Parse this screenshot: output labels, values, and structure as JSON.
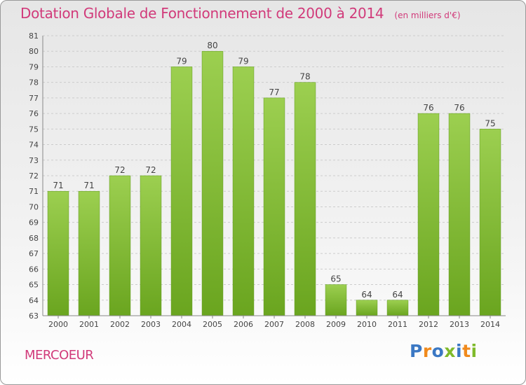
{
  "header": {
    "title": "Dotation Globale de Fonctionnement de 2000 à 2014",
    "subtitle": "(en milliers d'€)"
  },
  "footer": {
    "place": "MERCOEUR",
    "logo": "Proxiti"
  },
  "colors": {
    "title": "#d13a7a",
    "bar_light": "#9ccf50",
    "bar_dark": "#6aa51f",
    "grid": "#cccccc",
    "logo_letters": [
      "#3b78c4",
      "#f08a1d",
      "#3b78c4",
      "#7fba2b",
      "#3b78c4",
      "#f08a1d",
      "#7fba2b"
    ]
  },
  "chart_data": {
    "type": "bar",
    "title": "Dotation Globale de Fonctionnement de 2000 à 2014",
    "subtitle": "(en milliers d'€)",
    "categories": [
      "2000",
      "2001",
      "2002",
      "2003",
      "2004",
      "2005",
      "2006",
      "2007",
      "2008",
      "2009",
      "2010",
      "2011",
      "2012",
      "2013",
      "2014"
    ],
    "values": [
      71,
      71,
      72,
      72,
      79,
      80,
      79,
      77,
      78,
      65,
      64,
      64,
      76,
      76,
      75
    ],
    "ylim": [
      63,
      81
    ],
    "yticks": [
      63,
      64,
      65,
      66,
      67,
      68,
      69,
      70,
      71,
      72,
      73,
      74,
      75,
      76,
      77,
      78,
      79,
      80,
      81
    ],
    "grid": true,
    "xlabel": "",
    "ylabel": ""
  }
}
